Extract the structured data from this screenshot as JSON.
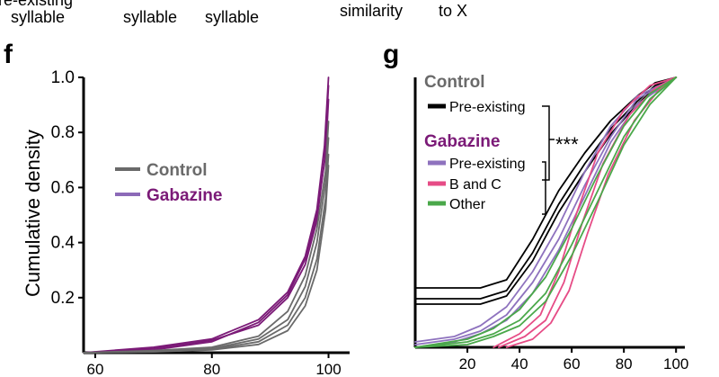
{
  "top_strip": {
    "left_partial": "Pre-existing",
    "left_labels": [
      "syllable",
      "syllable",
      "syllable"
    ],
    "right_labels": [
      "similarity",
      "to X"
    ]
  },
  "colors": {
    "control": "#6a6a6a",
    "gabazine": "#7b1a77",
    "gabazine_legend": "#8c6ab8",
    "black": "#000000",
    "pink": "#e64c86",
    "green": "#4aa84a",
    "purple": "#8e72be"
  },
  "chart_data": [
    {
      "panel": "f",
      "type": "line",
      "ylabel": "Cumulative density",
      "xlabel": "",
      "xlim": [
        58,
        103
      ],
      "ylim": [
        0,
        1.0
      ],
      "xticks": [
        60,
        80,
        100
      ],
      "yticks": [
        0.2,
        0.4,
        0.6,
        0.8,
        1.0
      ],
      "ytick_labels": [
        "0.2",
        "0.4",
        "0.6",
        "0.8",
        "1.0"
      ],
      "legend": [
        {
          "label": "Control",
          "color": "#6a6a6a",
          "text_color": "#6a6a6a"
        },
        {
          "label": "Gabazine",
          "color": "#8c6ab8",
          "text_color": "#7b1a77"
        }
      ],
      "series": [
        {
          "group": "Gabazine",
          "color": "#7b1a77",
          "x": [
            58,
            70,
            80,
            88,
            93,
            96,
            98,
            99.3,
            100
          ],
          "y": [
            0.0,
            0.02,
            0.05,
            0.12,
            0.22,
            0.35,
            0.52,
            0.75,
            1.0
          ]
        },
        {
          "group": "Gabazine",
          "color": "#7b1a77",
          "x": [
            58,
            70,
            80,
            88,
            93,
            96,
            98,
            99.3,
            100
          ],
          "y": [
            0.0,
            0.015,
            0.045,
            0.1,
            0.2,
            0.32,
            0.48,
            0.7,
            0.97
          ]
        },
        {
          "group": "Gabazine",
          "color": "#7b1a77",
          "x": [
            58,
            70,
            80,
            88,
            93,
            96,
            98,
            99.5,
            100
          ],
          "y": [
            0.0,
            0.01,
            0.04,
            0.11,
            0.21,
            0.34,
            0.5,
            0.72,
            0.92
          ]
        },
        {
          "group": "Control",
          "color": "#6a6a6a",
          "x": [
            58,
            70,
            80,
            88,
            93,
            96,
            98,
            99.5,
            100
          ],
          "y": [
            0.0,
            0.008,
            0.02,
            0.06,
            0.15,
            0.28,
            0.45,
            0.66,
            0.84
          ]
        },
        {
          "group": "Control",
          "color": "#6a6a6a",
          "x": [
            58,
            70,
            80,
            88,
            93,
            96,
            98,
            99.5,
            100
          ],
          "y": [
            0.0,
            0.005,
            0.015,
            0.05,
            0.12,
            0.24,
            0.4,
            0.62,
            0.78
          ]
        },
        {
          "group": "Control",
          "color": "#6a6a6a",
          "x": [
            58,
            70,
            80,
            88,
            93,
            96,
            98,
            99.5,
            100
          ],
          "y": [
            0.0,
            0.004,
            0.012,
            0.04,
            0.1,
            0.2,
            0.34,
            0.56,
            0.72
          ]
        },
        {
          "group": "Control",
          "color": "#6a6a6a",
          "x": [
            58,
            70,
            80,
            88,
            93,
            96,
            98,
            99.5,
            100
          ],
          "y": [
            0.0,
            0.003,
            0.01,
            0.03,
            0.08,
            0.17,
            0.3,
            0.52,
            0.68
          ]
        }
      ]
    },
    {
      "panel": "g",
      "type": "line",
      "ylabel": "",
      "xlabel": "",
      "xlim": [
        0,
        102
      ],
      "ylim": [
        0,
        1.0
      ],
      "xticks": [
        20,
        40,
        60,
        80,
        100
      ],
      "legend": [
        {
          "label": "Control",
          "heading": true,
          "color": "#6a6a6a"
        },
        {
          "label": "Pre-existing",
          "color": "#000000"
        },
        {
          "label": "Gabazine",
          "heading": true,
          "color": "#7b1a77"
        },
        {
          "label": "Pre-existing",
          "color": "#8e72be"
        },
        {
          "label": "B and C",
          "color": "#e64c86"
        },
        {
          "label": "Other",
          "color": "#4aa84a"
        }
      ],
      "significance": "***",
      "series": [
        {
          "group": "Control Pre-existing",
          "color": "#000000",
          "x": [
            0,
            10,
            25,
            35,
            45,
            55,
            65,
            75,
            85,
            92,
            100
          ],
          "y": [
            0.22,
            0.22,
            0.22,
            0.25,
            0.4,
            0.58,
            0.72,
            0.84,
            0.93,
            0.98,
            1.0
          ]
        },
        {
          "group": "Control Pre-existing",
          "color": "#000000",
          "x": [
            0,
            10,
            25,
            35,
            45,
            55,
            65,
            75,
            85,
            92,
            100
          ],
          "y": [
            0.18,
            0.18,
            0.18,
            0.21,
            0.35,
            0.53,
            0.68,
            0.81,
            0.91,
            0.97,
            1.0
          ]
        },
        {
          "group": "Control Pre-existing",
          "color": "#000000",
          "x": [
            0,
            10,
            25,
            35,
            45,
            55,
            65,
            75,
            85,
            92,
            100
          ],
          "y": [
            0.16,
            0.16,
            0.16,
            0.19,
            0.32,
            0.5,
            0.65,
            0.79,
            0.9,
            0.96,
            1.0
          ]
        },
        {
          "group": "Gabazine Pre-existing",
          "color": "#8e72be",
          "x": [
            0,
            15,
            25,
            35,
            45,
            55,
            65,
            75,
            85,
            100
          ],
          "y": [
            0.02,
            0.04,
            0.08,
            0.15,
            0.28,
            0.45,
            0.65,
            0.82,
            0.93,
            1.0
          ]
        },
        {
          "group": "Gabazine Pre-existing",
          "color": "#8e72be",
          "x": [
            0,
            15,
            25,
            35,
            45,
            55,
            65,
            75,
            85,
            100
          ],
          "y": [
            0.01,
            0.03,
            0.06,
            0.12,
            0.24,
            0.4,
            0.6,
            0.78,
            0.92,
            1.0
          ]
        },
        {
          "group": "Gabazine Pre-existing",
          "color": "#8e72be",
          "x": [
            0,
            15,
            25,
            35,
            45,
            55,
            65,
            75,
            85,
            100
          ],
          "y": [
            0.0,
            0.02,
            0.05,
            0.1,
            0.2,
            0.36,
            0.56,
            0.76,
            0.9,
            1.0
          ]
        },
        {
          "group": "Gabazine B and C",
          "color": "#e64c86",
          "x": [
            30,
            40,
            48,
            55,
            62,
            70,
            80,
            90,
            100
          ],
          "y": [
            0.0,
            0.05,
            0.12,
            0.28,
            0.5,
            0.72,
            0.88,
            0.97,
            1.0
          ]
        },
        {
          "group": "Gabazine B and C",
          "color": "#e64c86",
          "x": [
            32,
            42,
            50,
            57,
            64,
            72,
            82,
            92,
            100
          ],
          "y": [
            0.0,
            0.04,
            0.1,
            0.24,
            0.46,
            0.68,
            0.86,
            0.96,
            1.0
          ]
        },
        {
          "group": "Gabazine B and C",
          "color": "#e64c86",
          "x": [
            35,
            45,
            52,
            59,
            66,
            74,
            84,
            94,
            100
          ],
          "y": [
            0.0,
            0.03,
            0.09,
            0.21,
            0.42,
            0.64,
            0.84,
            0.96,
            1.0
          ]
        },
        {
          "group": "Gabazine Other",
          "color": "#4aa84a",
          "x": [
            0,
            20,
            30,
            40,
            50,
            60,
            70,
            80,
            90,
            100
          ],
          "y": [
            0.0,
            0.03,
            0.07,
            0.14,
            0.26,
            0.44,
            0.64,
            0.82,
            0.94,
            1.0
          ]
        },
        {
          "group": "Gabazine Other",
          "color": "#4aa84a",
          "x": [
            0,
            20,
            30,
            40,
            50,
            60,
            70,
            80,
            90,
            100
          ],
          "y": [
            0.0,
            0.02,
            0.05,
            0.1,
            0.2,
            0.38,
            0.58,
            0.78,
            0.92,
            1.0
          ]
        },
        {
          "group": "Gabazine Other",
          "color": "#4aa84a",
          "x": [
            0,
            20,
            30,
            40,
            50,
            60,
            70,
            80,
            90,
            100
          ],
          "y": [
            0.0,
            0.01,
            0.04,
            0.08,
            0.17,
            0.34,
            0.54,
            0.75,
            0.9,
            1.0
          ]
        }
      ]
    }
  ],
  "panel_labels": [
    "f",
    "g"
  ]
}
